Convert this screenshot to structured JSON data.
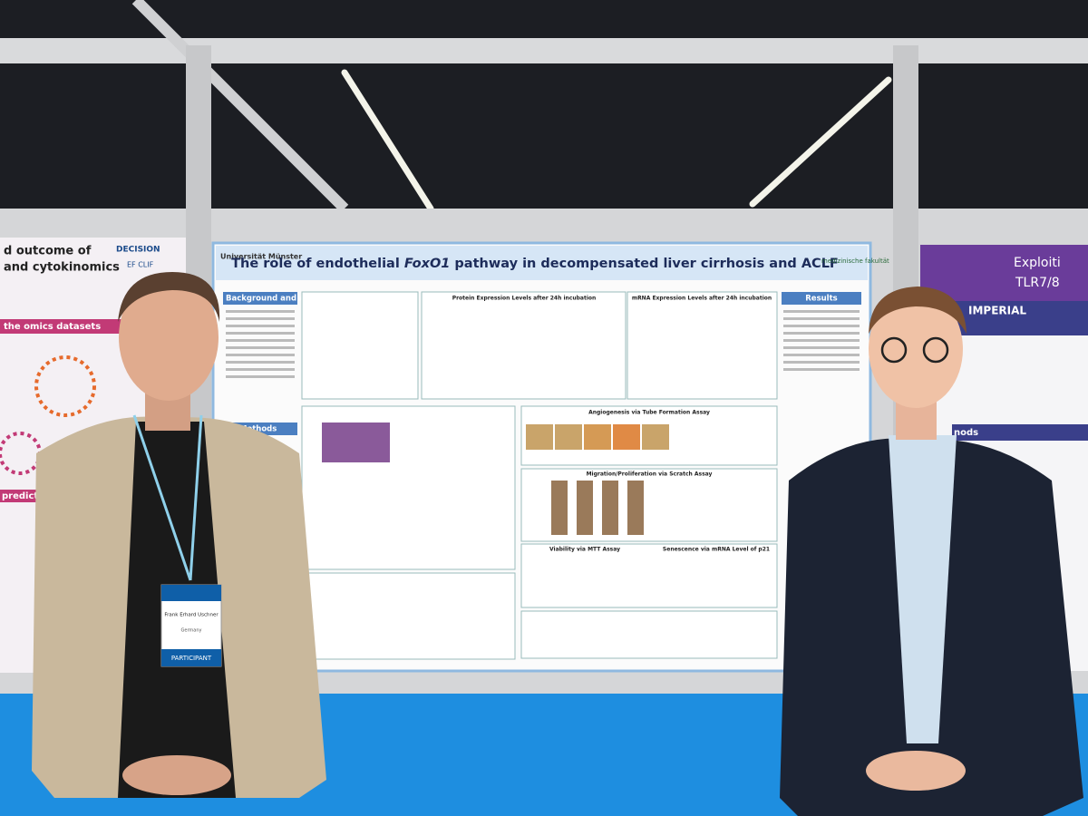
{
  "center_poster": {
    "title_start": "The role of endothelial ",
    "title_italic": "FoxO1",
    "title_end": " pathway in decompensated liver cirrhosis and ACLF",
    "logo_left": "Universität Münster",
    "logo_right": "medizinische fakultät",
    "background_heading": "Background and Aims",
    "results_heading": "Results",
    "methods_heading": "Methods",
    "panel_titles": [
      "Protein Expression Levels after 24h incubation",
      "mRNA Expression Levels after 24h incubation",
      "Angiogenesis via Tube Formation Assay",
      "Migration/Proliferation via Scratch Assay",
      "Viability via MTT Assay",
      "Senescence via mRNA Level of p21"
    ]
  },
  "left_poster": {
    "line1": "d outcome of",
    "line2": "and cytokinomics",
    "line3": "the omics datasets",
    "line4": "predictive",
    "logo": "DECISION",
    "logo2": "EF CLIF"
  },
  "right_poster": {
    "line1": "Exploiti",
    "line2": "TLR7/8",
    "line3": "IMPERIAL",
    "line4": "nods"
  },
  "badge": {
    "name": "Frank Erhard Uschner",
    "country": "Germany",
    "role": "PARTICIPANT"
  }
}
